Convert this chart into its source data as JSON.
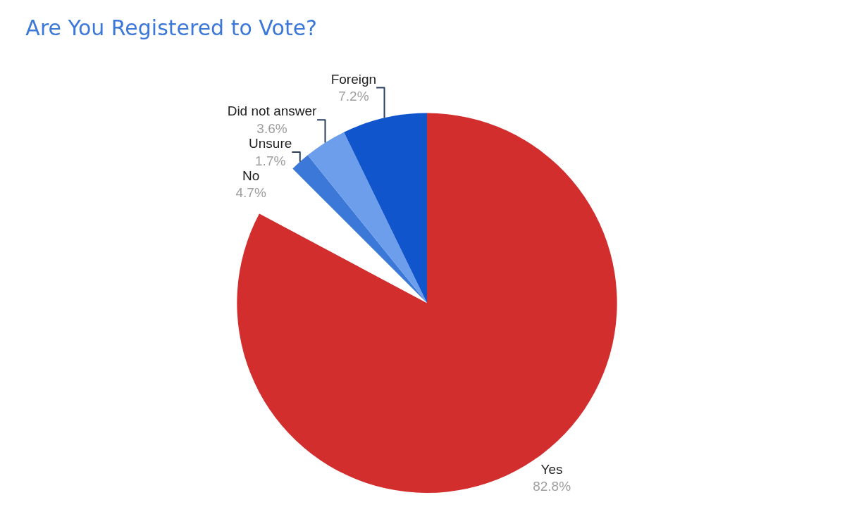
{
  "chart_data": {
    "type": "pie",
    "title": "Are You Registered to Vote?",
    "categories": [
      "Yes",
      "No",
      "Unsure",
      "Did not answer",
      "Foreign"
    ],
    "values": [
      82.8,
      4.7,
      1.7,
      3.6,
      7.2
    ],
    "value_labels": [
      "82.8%",
      "4.7%",
      "1.7%",
      "3.6%",
      "7.2%"
    ],
    "colors": [
      "#d22e2e",
      "#ffffff",
      "#3c78d8",
      "#6d9eeb",
      "#1155cc"
    ],
    "legend": false
  }
}
